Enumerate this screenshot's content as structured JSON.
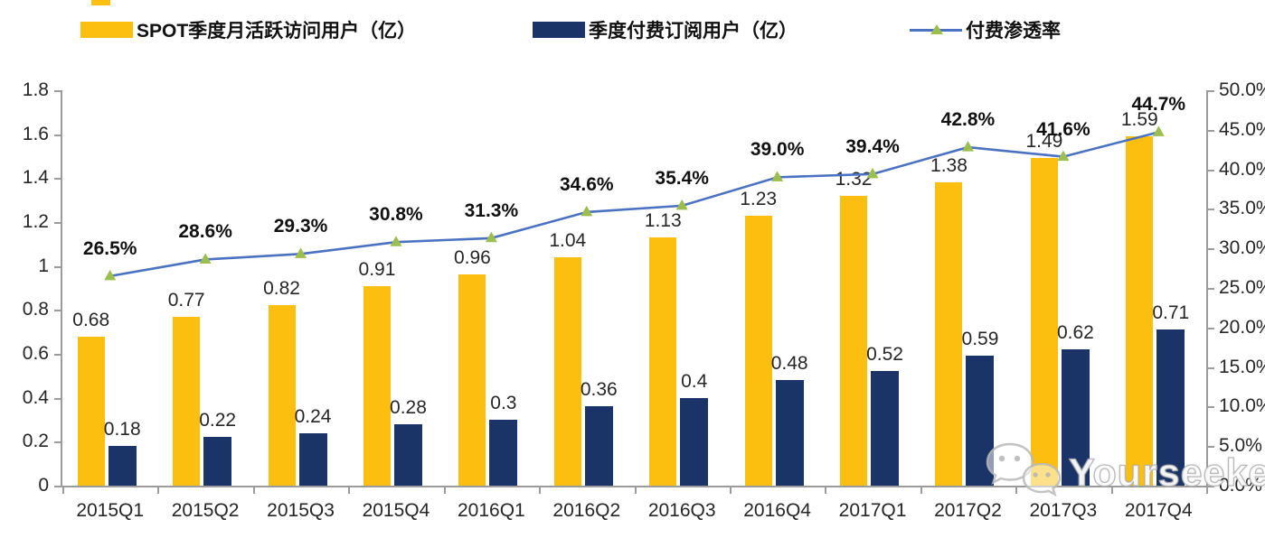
{
  "legend": {
    "items": [
      {
        "label": "SPOT季度月活跃访问用户（亿）",
        "color": "#fcbf10"
      },
      {
        "label": "季度付费订阅用户（亿）",
        "color": "#1b3467"
      },
      {
        "label": "付费渗透率",
        "line_color": "#4a72c0",
        "marker_color": "#9cbe51"
      }
    ]
  },
  "chart_data": {
    "type": "combo-bar-line",
    "categories": [
      "2015Q1",
      "2015Q2",
      "2015Q3",
      "2015Q4",
      "2016Q1",
      "2016Q2",
      "2016Q3",
      "2016Q4",
      "2017Q1",
      "2017Q2",
      "2017Q3",
      "2017Q4"
    ],
    "series": [
      {
        "name": "SPOT季度月活跃访问用户（亿）",
        "type": "bar",
        "axis": "left",
        "color": "#fcbf10",
        "values": [
          0.68,
          0.77,
          0.82,
          0.91,
          0.96,
          1.04,
          1.13,
          1.23,
          1.32,
          1.38,
          1.49,
          1.59
        ],
        "labels": [
          "0.68",
          "0.77",
          "0.82",
          "0.91",
          "0.96",
          "1.04",
          "1.13",
          "1.23",
          "1.32",
          "1.38",
          "1.49",
          "1.59"
        ]
      },
      {
        "name": "季度付费订阅用户（亿）",
        "type": "bar",
        "axis": "left",
        "color": "#1b3467",
        "values": [
          0.18,
          0.22,
          0.24,
          0.28,
          0.3,
          0.36,
          0.4,
          0.48,
          0.52,
          0.59,
          0.62,
          0.71
        ],
        "labels": [
          "0.18",
          "0.22",
          "0.24",
          "0.28",
          "0.3",
          "0.36",
          "0.4",
          "0.48",
          "0.52",
          "0.59",
          "0.62",
          "0.71"
        ]
      },
      {
        "name": "付费渗透率",
        "type": "line",
        "axis": "right",
        "color": "#4a72c0",
        "marker_color": "#9cbe51",
        "values": [
          26.5,
          28.6,
          29.3,
          30.8,
          31.3,
          34.6,
          35.4,
          39.0,
          39.4,
          42.8,
          41.6,
          44.7
        ],
        "labels": [
          "26.5%",
          "28.6%",
          "29.3%",
          "30.8%",
          "31.3%",
          "34.6%",
          "35.4%",
          "39.0%",
          "39.4%",
          "42.8%",
          "41.6%",
          "44.7%"
        ]
      }
    ],
    "left_axis": {
      "min": 0,
      "max": 1.8,
      "tick_labels": [
        "1.8",
        "1.6",
        "1.4",
        "1.2",
        "1",
        "0.8",
        "0.6",
        "0.4",
        "0.2",
        "0"
      ]
    },
    "right_axis": {
      "min": 0,
      "max": 50,
      "tick_labels": [
        "50.0%",
        "45.0%",
        "40.0%",
        "35.0%",
        "30.0%",
        "25.0%",
        "20.0%",
        "15.0%",
        "10.0%",
        "5.0%",
        "0.0%"
      ]
    },
    "grid": false,
    "legend_position": "top"
  },
  "watermark": {
    "text": "Yourseeker"
  }
}
